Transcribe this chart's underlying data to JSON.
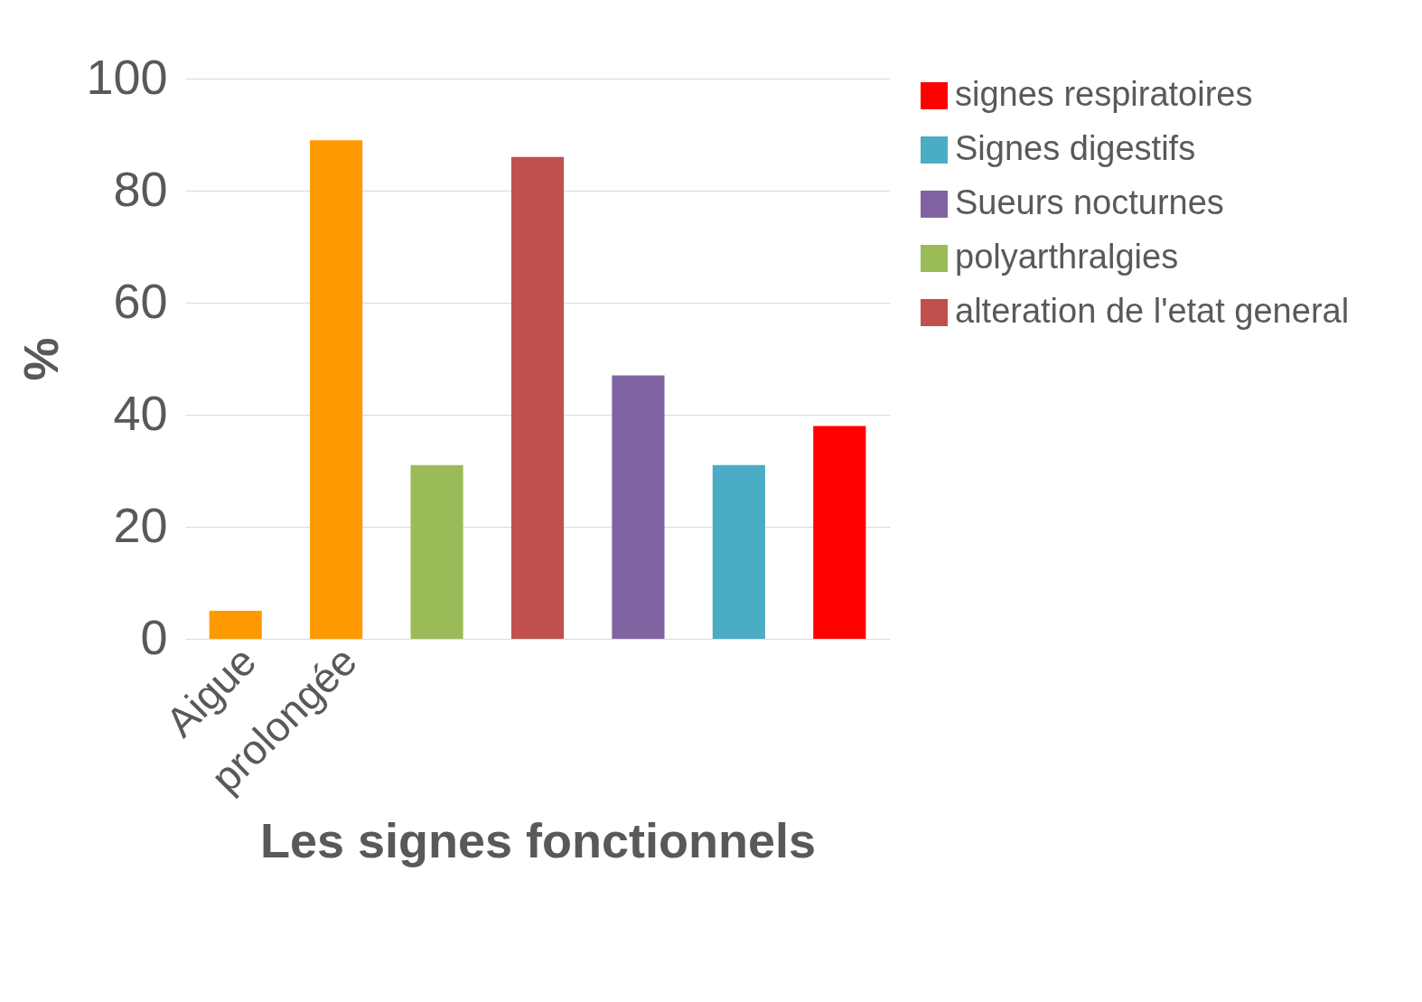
{
  "chart_data": {
    "type": "bar",
    "xlabel": "Les signes fonctionnels",
    "ylabel": "%",
    "categories": [
      "Aigue",
      "prolongée",
      null,
      null,
      null,
      null,
      null
    ],
    "series": [
      {
        "color": "#ff9900",
        "values": [
          5,
          89,
          null,
          null,
          null,
          null,
          null
        ]
      },
      {
        "name": "signes respiratoires",
        "color": "#ff0000",
        "values": [
          null,
          null,
          null,
          null,
          null,
          null,
          38
        ]
      },
      {
        "name": "Signes digestifs",
        "color": "#4bacc6",
        "values": [
          null,
          null,
          null,
          null,
          null,
          31,
          null
        ]
      },
      {
        "name": "Sueurs nocturnes",
        "color": "#8064a2",
        "values": [
          null,
          null,
          null,
          null,
          47,
          null,
          null
        ]
      },
      {
        "name": "polyarthralgies",
        "color": "#9bbb59",
        "values": [
          null,
          null,
          31,
          null,
          null,
          null,
          null
        ]
      },
      {
        "name": "alteration de l'etat general",
        "color": "#c0504d",
        "values": [
          null,
          null,
          null,
          86,
          null,
          null,
          null
        ]
      }
    ],
    "ylim": [
      0,
      100
    ],
    "yticks": [
      0,
      20,
      40,
      60,
      80,
      100
    ],
    "grid": "y",
    "legend": "right"
  }
}
